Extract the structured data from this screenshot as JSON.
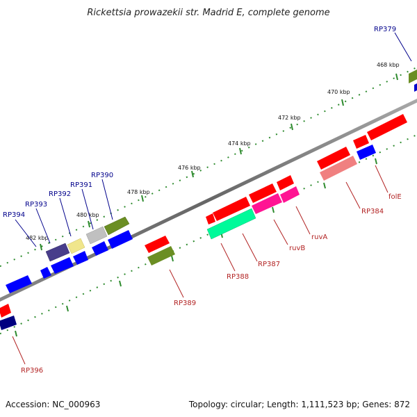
{
  "title": "Rickettsia prowazekii str. Madrid E, complete genome",
  "footer": {
    "accession": "Accession: NC_000963",
    "summary": "Topology: circular; Length: 1,111,523 bp; Genes: 872"
  },
  "ticks": [
    "468 kbp",
    "470 kbp",
    "472 kbp",
    "474 kbp",
    "476 kbp",
    "478 kbp",
    "480 kbp",
    "482 kbp"
  ],
  "genes_outer": [
    {
      "label": "RP379",
      "color": "#6b8e23"
    },
    {
      "label": "RP390",
      "color": "#6b8e23"
    },
    {
      "label": "RP391",
      "color": "#c0c0c0"
    },
    {
      "label": "RP392",
      "color": "#f0e68c"
    },
    {
      "label": "RP393",
      "color": "#483d8b"
    },
    {
      "label": "RP394",
      "color": "#0000ff"
    }
  ],
  "genes_inner": [
    {
      "label": "folE",
      "color": "#0000ff"
    },
    {
      "label": "RP384",
      "color": "#f08080"
    },
    {
      "label": "ruvA",
      "color": "#ff1493"
    },
    {
      "label": "ruvB",
      "color": "#ff1493"
    },
    {
      "label": "RP387",
      "color": "#ff0000"
    },
    {
      "label": "RP388",
      "color": "#00fa9a"
    },
    {
      "label": "RP389",
      "color": "#6b8e23"
    },
    {
      "label": "RP396",
      "color": "#000080"
    }
  ]
}
